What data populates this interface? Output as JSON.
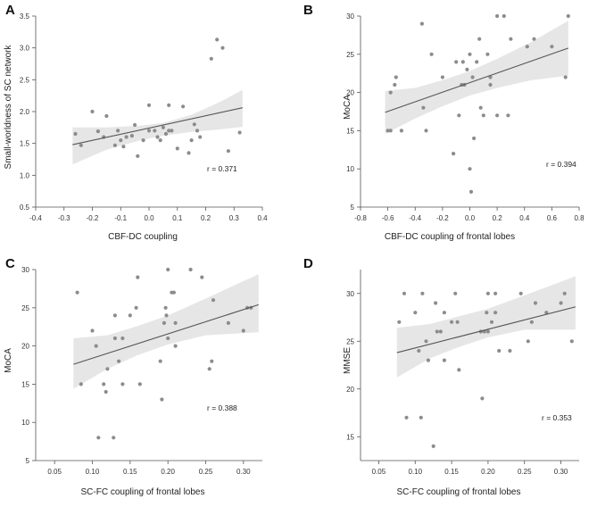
{
  "chart_data": [
    {
      "type": "scatter",
      "panel": "A",
      "xlabel": "CBF-DC coupling",
      "ylabel": "Small-worldness of SC network",
      "r_text": "r = 0.371",
      "xlim": [
        -0.4,
        0.4
      ],
      "ylim": [
        0.5,
        3.5
      ],
      "xticks": [
        -0.4,
        -0.3,
        -0.2,
        -0.1,
        0.0,
        0.1,
        0.2,
        0.3,
        0.4
      ],
      "yticks": [
        0.5,
        1.0,
        1.5,
        2.0,
        2.5,
        3.0,
        3.5
      ],
      "tick_decimals": 1,
      "fit": {
        "x": [
          -0.27,
          0.33
        ],
        "y": [
          1.48,
          2.06
        ]
      },
      "band_upper": [
        [
          -0.27,
          1.75
        ],
        [
          -0.15,
          1.75
        ],
        [
          -0.03,
          1.78
        ],
        [
          0.05,
          1.82
        ],
        [
          0.15,
          1.95
        ],
        [
          0.25,
          2.15
        ],
        [
          0.33,
          2.34
        ]
      ],
      "band_lower": [
        [
          -0.27,
          1.17
        ],
        [
          -0.15,
          1.4
        ],
        [
          -0.03,
          1.55
        ],
        [
          0.05,
          1.62
        ],
        [
          0.15,
          1.68
        ],
        [
          0.25,
          1.72
        ],
        [
          0.33,
          1.76
        ]
      ],
      "points": [
        [
          -0.26,
          1.65
        ],
        [
          -0.24,
          1.47
        ],
        [
          -0.2,
          2.0
        ],
        [
          -0.18,
          1.69
        ],
        [
          -0.16,
          1.6
        ],
        [
          -0.15,
          1.93
        ],
        [
          -0.12,
          1.47
        ],
        [
          -0.11,
          1.7
        ],
        [
          -0.1,
          1.55
        ],
        [
          -0.09,
          1.45
        ],
        [
          -0.08,
          1.6
        ],
        [
          -0.06,
          1.62
        ],
        [
          -0.05,
          1.79
        ],
        [
          -0.04,
          1.3
        ],
        [
          -0.02,
          1.55
        ],
        [
          0.0,
          1.7
        ],
        [
          0.0,
          2.1
        ],
        [
          0.02,
          1.7
        ],
        [
          0.03,
          1.6
        ],
        [
          0.04,
          1.55
        ],
        [
          0.05,
          1.75
        ],
        [
          0.06,
          1.65
        ],
        [
          0.07,
          1.7
        ],
        [
          0.07,
          2.1
        ],
        [
          0.08,
          1.7
        ],
        [
          0.1,
          1.42
        ],
        [
          0.12,
          2.08
        ],
        [
          0.14,
          1.35
        ],
        [
          0.15,
          1.55
        ],
        [
          0.16,
          1.8
        ],
        [
          0.17,
          1.7
        ],
        [
          0.18,
          1.6
        ],
        [
          0.22,
          2.83
        ],
        [
          0.24,
          3.13
        ],
        [
          0.26,
          3.0
        ],
        [
          0.28,
          1.38
        ],
        [
          0.32,
          1.67
        ]
      ]
    },
    {
      "type": "scatter",
      "panel": "B",
      "xlabel": "CBF-DC coupling of frontal lobes",
      "ylabel": "MoCA",
      "r_text": "r = 0.394",
      "xlim": [
        -0.8,
        0.8
      ],
      "ylim": [
        5,
        30
      ],
      "xticks": [
        -0.8,
        -0.6,
        -0.4,
        -0.2,
        0.0,
        0.2,
        0.4,
        0.6,
        0.8
      ],
      "yticks": [
        5,
        10,
        15,
        20,
        25,
        30
      ],
      "tick_decimals": 1,
      "ytick_decimals": 0,
      "fit": {
        "x": [
          -0.62,
          0.72
        ],
        "y": [
          17.4,
          25.8
        ]
      },
      "band_upper": [
        [
          -0.62,
          20.2
        ],
        [
          -0.4,
          20.6
        ],
        [
          -0.2,
          21.6
        ],
        [
          0.0,
          22.8
        ],
        [
          0.2,
          24.4
        ],
        [
          0.45,
          26.6
        ],
        [
          0.72,
          29.4
        ]
      ],
      "band_lower": [
        [
          -0.62,
          14.6
        ],
        [
          -0.4,
          16.6
        ],
        [
          -0.2,
          18.2
        ],
        [
          0.0,
          19.6
        ],
        [
          0.2,
          20.6
        ],
        [
          0.45,
          21.6
        ],
        [
          0.72,
          22.2
        ]
      ],
      "points": [
        [
          -0.6,
          15
        ],
        [
          -0.58,
          15
        ],
        [
          -0.58,
          20
        ],
        [
          -0.55,
          21
        ],
        [
          -0.54,
          22
        ],
        [
          -0.5,
          15
        ],
        [
          -0.35,
          29
        ],
        [
          -0.34,
          18
        ],
        [
          -0.32,
          15
        ],
        [
          -0.28,
          25
        ],
        [
          -0.2,
          22
        ],
        [
          -0.12,
          12
        ],
        [
          -0.1,
          24
        ],
        [
          -0.08,
          17
        ],
        [
          -0.06,
          21
        ],
        [
          -0.05,
          24
        ],
        [
          -0.04,
          21
        ],
        [
          -0.02,
          23
        ],
        [
          0.0,
          25
        ],
        [
          0.0,
          10
        ],
        [
          0.01,
          7
        ],
        [
          0.02,
          22
        ],
        [
          0.03,
          14
        ],
        [
          0.05,
          24
        ],
        [
          0.07,
          27
        ],
        [
          0.08,
          18
        ],
        [
          0.1,
          17
        ],
        [
          0.13,
          25
        ],
        [
          0.15,
          21
        ],
        [
          0.15,
          22
        ],
        [
          0.2,
          30
        ],
        [
          0.2,
          17
        ],
        [
          0.25,
          30
        ],
        [
          0.28,
          17
        ],
        [
          0.3,
          27
        ],
        [
          0.42,
          26
        ],
        [
          0.47,
          27
        ],
        [
          0.6,
          26
        ],
        [
          0.7,
          22
        ],
        [
          0.72,
          30
        ]
      ]
    },
    {
      "type": "scatter",
      "panel": "C",
      "xlabel": "SC-FC coupling of frontal lobes",
      "ylabel": "MoCA",
      "r_text": "r = 0.388",
      "xlim": [
        0.025,
        0.325
      ],
      "ylim": [
        5,
        30
      ],
      "xticks": [
        0.05,
        0.1,
        0.15,
        0.2,
        0.25,
        0.3
      ],
      "yticks": [
        5,
        10,
        15,
        20,
        25,
        30
      ],
      "tick_decimals": 2,
      "ytick_decimals": 0,
      "fit": {
        "x": [
          0.075,
          0.32
        ],
        "y": [
          17.6,
          25.4
        ]
      },
      "band_upper": [
        [
          0.075,
          21.0
        ],
        [
          0.12,
          21.4
        ],
        [
          0.16,
          22.6
        ],
        [
          0.2,
          24.0
        ],
        [
          0.25,
          26.2
        ],
        [
          0.32,
          29.4
        ]
      ],
      "band_lower": [
        [
          0.075,
          14.4
        ],
        [
          0.12,
          17.0
        ],
        [
          0.16,
          18.8
        ],
        [
          0.2,
          20.2
        ],
        [
          0.25,
          21.4
        ],
        [
          0.32,
          21.8
        ]
      ],
      "points": [
        [
          0.08,
          27
        ],
        [
          0.085,
          15
        ],
        [
          0.1,
          22
        ],
        [
          0.105,
          20
        ],
        [
          0.108,
          8
        ],
        [
          0.115,
          15
        ],
        [
          0.118,
          14
        ],
        [
          0.12,
          17
        ],
        [
          0.128,
          8
        ],
        [
          0.13,
          21
        ],
        [
          0.13,
          24
        ],
        [
          0.135,
          18
        ],
        [
          0.14,
          21
        ],
        [
          0.14,
          15
        ],
        [
          0.15,
          24
        ],
        [
          0.158,
          25
        ],
        [
          0.16,
          29
        ],
        [
          0.163,
          15
        ],
        [
          0.19,
          18
        ],
        [
          0.192,
          13
        ],
        [
          0.195,
          23
        ],
        [
          0.197,
          25
        ],
        [
          0.198,
          24
        ],
        [
          0.2,
          30
        ],
        [
          0.2,
          21
        ],
        [
          0.205,
          27
        ],
        [
          0.208,
          27
        ],
        [
          0.21,
          23
        ],
        [
          0.21,
          20
        ],
        [
          0.23,
          30
        ],
        [
          0.245,
          29
        ],
        [
          0.255,
          17
        ],
        [
          0.258,
          18
        ],
        [
          0.26,
          26
        ],
        [
          0.28,
          23
        ],
        [
          0.3,
          22
        ],
        [
          0.305,
          25
        ],
        [
          0.31,
          25
        ]
      ]
    },
    {
      "type": "scatter",
      "panel": "D",
      "xlabel": "SC-FC coupling of frontal lobes",
      "ylabel": "MMSE",
      "r_text": "r = 0.353",
      "xlim": [
        0.025,
        0.325
      ],
      "ylim": [
        12.5,
        32.5
      ],
      "xticks": [
        0.05,
        0.1,
        0.15,
        0.2,
        0.25,
        0.3
      ],
      "yticks": [
        15,
        20,
        25,
        30
      ],
      "tick_decimals": 2,
      "ytick_decimals": 0,
      "fit": {
        "x": [
          0.075,
          0.32
        ],
        "y": [
          23.8,
          28.6
        ]
      },
      "band_upper": [
        [
          0.075,
          26.4
        ],
        [
          0.12,
          26.8
        ],
        [
          0.16,
          27.6
        ],
        [
          0.2,
          28.4
        ],
        [
          0.25,
          29.8
        ],
        [
          0.32,
          31.8
        ]
      ],
      "band_lower": [
        [
          0.075,
          21.2
        ],
        [
          0.12,
          23.2
        ],
        [
          0.16,
          24.4
        ],
        [
          0.2,
          25.4
        ],
        [
          0.25,
          26.2
        ],
        [
          0.32,
          26.2
        ]
      ],
      "points": [
        [
          0.078,
          27
        ],
        [
          0.085,
          30
        ],
        [
          0.088,
          17
        ],
        [
          0.1,
          28
        ],
        [
          0.105,
          24
        ],
        [
          0.108,
          17
        ],
        [
          0.11,
          30
        ],
        [
          0.115,
          25
        ],
        [
          0.118,
          23
        ],
        [
          0.125,
          14
        ],
        [
          0.128,
          29
        ],
        [
          0.13,
          26
        ],
        [
          0.135,
          26
        ],
        [
          0.14,
          23
        ],
        [
          0.14,
          28
        ],
        [
          0.15,
          27
        ],
        [
          0.155,
          30
        ],
        [
          0.158,
          27
        ],
        [
          0.16,
          22
        ],
        [
          0.19,
          26
        ],
        [
          0.192,
          19
        ],
        [
          0.195,
          26
        ],
        [
          0.198,
          28
        ],
        [
          0.2,
          30
        ],
        [
          0.2,
          26
        ],
        [
          0.205,
          27
        ],
        [
          0.21,
          30
        ],
        [
          0.21,
          28
        ],
        [
          0.215,
          24
        ],
        [
          0.23,
          24
        ],
        [
          0.245,
          30
        ],
        [
          0.255,
          25
        ],
        [
          0.26,
          27
        ],
        [
          0.265,
          29
        ],
        [
          0.28,
          28
        ],
        [
          0.3,
          29
        ],
        [
          0.305,
          30
        ],
        [
          0.315,
          25
        ]
      ]
    }
  ]
}
